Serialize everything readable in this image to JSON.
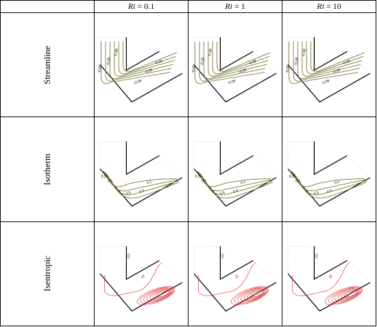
{
  "table": {
    "col_headers": [
      {
        "symbol": "Ri",
        "value": "= 0.1"
      },
      {
        "symbol": "Ri",
        "value": "= 1"
      },
      {
        "symbol": "Ri",
        "value": "= 10"
      }
    ],
    "rows": [
      {
        "label": "Streamline",
        "type": "streamline"
      },
      {
        "label": "Isotherm",
        "type": "isotherm"
      },
      {
        "label": "Isentropic",
        "type": "isentropic"
      }
    ]
  },
  "contour_labels": {
    "streamline": [
      "-0.48",
      "-0.28",
      "-0.08",
      "-0.08",
      "-0.28",
      "-0.48"
    ],
    "isotherm": [
      "0.1",
      "0.1",
      "0.5",
      "0.3",
      "0.1"
    ]
  },
  "colors": {
    "solid_line": "#2e9e2e",
    "dashed_line": "#e05555",
    "isentropic": "#e02020",
    "wall": "#000000"
  }
}
